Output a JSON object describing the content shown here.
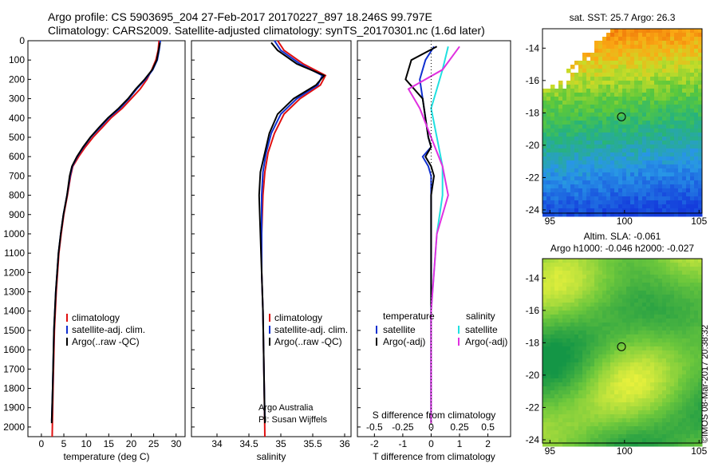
{
  "header": {
    "line1": "Argo profile: CS 5903695_204 27-Feb-2017 20170227_897 18.246S 99.797E",
    "line2": "Climatology: CARS2009. Satellite-adjusted climatology: synTS_20170301.nc (1.6d later)"
  },
  "credit": "©IMOS 08-Mar-2017 20:38:32",
  "colors": {
    "climatology": "#e01010",
    "satellite": "#1030d0",
    "argo": "#000000",
    "satellite_salinity": "#20e0e0",
    "argo_salinity": "#e030e0"
  },
  "chart_data": [
    {
      "type": "line",
      "xlabel": "temperature (deg C)",
      "xlim": [
        -3,
        32
      ],
      "ylim": [
        2050,
        0
      ],
      "y_ticks": [
        0,
        100,
        200,
        300,
        400,
        500,
        600,
        700,
        800,
        900,
        1000,
        1100,
        1200,
        1300,
        1400,
        1500,
        1600,
        1700,
        1800,
        1900,
        2000
      ],
      "x_ticks": [
        0,
        5,
        10,
        15,
        20,
        25,
        30
      ],
      "legend": [
        "climatology",
        "satellite-adj. clim.",
        "Argo(..raw -QC)"
      ],
      "series": [
        {
          "name": "climatology",
          "color": "#e01010",
          "x": [
            26.2,
            26.0,
            25.5,
            24.6,
            23.5,
            22.0,
            20.0,
            18.0,
            15.5,
            13.5,
            11.5,
            9.8,
            8.3,
            7.0,
            6.5,
            5.8,
            5.0,
            4.4,
            3.9,
            3.3,
            2.9,
            2.6,
            2.4
          ],
          "y": [
            0,
            50,
            100,
            150,
            200,
            250,
            300,
            350,
            400,
            450,
            500,
            550,
            600,
            650,
            700,
            800,
            900,
            1000,
            1100,
            1300,
            1500,
            1800,
            2050
          ]
        },
        {
          "name": "satellite-adj. clim.",
          "color": "#1030d0",
          "x": [
            26.5,
            26.2,
            25.8,
            24.8,
            23.2,
            21.2,
            19.5,
            17.5,
            15.0,
            13.0,
            11.0,
            9.4,
            8.0,
            6.9,
            6.4,
            5.7,
            4.9,
            4.3,
            3.8,
            3.2,
            2.8,
            2.5,
            2.3
          ],
          "y": [
            0,
            50,
            100,
            150,
            200,
            250,
            300,
            350,
            400,
            450,
            500,
            550,
            600,
            650,
            700,
            800,
            900,
            1000,
            1100,
            1300,
            1500,
            1800,
            1970
          ]
        },
        {
          "name": "Argo(..raw -QC)",
          "color": "#000000",
          "x": [
            26.4,
            26.1,
            25.7,
            24.7,
            23.0,
            21.0,
            19.3,
            17.2,
            14.8,
            12.8,
            10.9,
            9.3,
            7.9,
            6.8,
            6.3,
            5.7,
            4.9,
            4.3,
            3.8,
            3.2,
            2.8,
            2.5,
            2.3
          ],
          "y": [
            10,
            50,
            100,
            150,
            200,
            250,
            300,
            350,
            400,
            450,
            500,
            550,
            600,
            650,
            700,
            800,
            900,
            1000,
            1100,
            1300,
            1500,
            1800,
            1980
          ]
        }
      ]
    },
    {
      "type": "line",
      "xlabel": "salinity",
      "xlim": [
        33.6,
        36.1
      ],
      "ylim": [
        2050,
        0
      ],
      "x_ticks": [
        34,
        34.5,
        35,
        35.5,
        36
      ],
      "legend": [
        "climatology",
        "satellite-adj. clim.",
        "Argo(..raw -QC)"
      ],
      "annotation": [
        "Argo Australia",
        "PI: Susan Wijffels"
      ],
      "series": [
        {
          "name": "climatology",
          "color": "#e01010",
          "x": [
            34.95,
            35.05,
            35.35,
            35.7,
            35.62,
            35.3,
            35.05,
            34.9,
            34.8,
            34.75,
            34.72,
            34.7,
            34.7,
            34.72,
            34.73,
            34.74,
            34.75
          ],
          "y": [
            0,
            50,
            120,
            180,
            230,
            300,
            380,
            480,
            580,
            680,
            800,
            1000,
            1200,
            1400,
            1600,
            1800,
            2050
          ]
        },
        {
          "name": "satellite-adj. clim.",
          "color": "#1030d0",
          "x": [
            34.9,
            35.0,
            35.3,
            35.65,
            35.58,
            35.25,
            35.0,
            34.85,
            34.77,
            34.72,
            34.7,
            34.7,
            34.7,
            34.72,
            34.73,
            34.74,
            34.75
          ],
          "y": [
            0,
            50,
            120,
            180,
            230,
            300,
            380,
            480,
            580,
            680,
            800,
            1000,
            1200,
            1400,
            1600,
            1800,
            1970
          ]
        },
        {
          "name": "Argo(..raw -QC)",
          "color": "#000000",
          "x": [
            34.85,
            34.95,
            35.25,
            35.68,
            35.55,
            35.2,
            34.95,
            34.82,
            34.75,
            34.68,
            34.66,
            34.68,
            34.7,
            34.72,
            34.73,
            34.74,
            34.75
          ],
          "y": [
            10,
            50,
            120,
            180,
            230,
            300,
            380,
            480,
            580,
            680,
            800,
            1000,
            1200,
            1400,
            1600,
            1800,
            1980
          ]
        }
      ]
    },
    {
      "type": "line",
      "xlabel": "T difference from climatology",
      "xlabel2": "S difference from climatology",
      "xlim": [
        -2.6,
        2.8
      ],
      "ylim": [
        2050,
        0
      ],
      "x_ticks": [
        -2,
        -1,
        0,
        1,
        2
      ],
      "x2_ticks": [
        -0.5,
        -0.25,
        0,
        0.25,
        0.5
      ],
      "legend_headers": [
        "temperature",
        "salinity"
      ],
      "legend": [
        "satellite",
        "Argo(-adj)",
        "satellite",
        "Argo(-adj)"
      ],
      "series": [
        {
          "name": "temperature satellite",
          "color": "#1030d0",
          "x": [
            0.1,
            -0.2,
            -0.4,
            -0.3,
            -0.2,
            -0.1,
            0.0,
            -0.3,
            -0.1,
            0.0,
            0.0,
            0.0,
            0.0,
            0.0,
            0.0
          ],
          "y": [
            30,
            100,
            200,
            300,
            400,
            500,
            550,
            600,
            650,
            700,
            800,
            1000,
            1400,
            1800,
            1970
          ]
        },
        {
          "name": "temperature Argo(-adj)",
          "color": "#000000",
          "x": [
            0.2,
            -0.7,
            -0.9,
            -0.3,
            -0.2,
            -0.1,
            0.0,
            -0.2,
            0.0,
            0.1,
            0.0,
            0.0,
            0.0,
            0.0,
            0.0
          ],
          "y": [
            30,
            100,
            200,
            300,
            400,
            500,
            550,
            600,
            650,
            700,
            800,
            1000,
            1400,
            1800,
            1980
          ]
        },
        {
          "name": "salinity satellite",
          "color": "#20e0e0",
          "x": [
            0.15,
            0.1,
            0.05,
            0.0,
            0.05,
            0.1,
            0.1,
            0.05,
            0.0,
            0.0,
            0.0
          ],
          "y": [
            30,
            150,
            250,
            350,
            500,
            650,
            800,
            1000,
            1400,
            1800,
            1970
          ]
        },
        {
          "name": "salinity Argo(-adj)",
          "color": "#e030e0",
          "x": [
            0.25,
            0.1,
            -0.2,
            -0.1,
            0.0,
            0.1,
            0.15,
            0.05,
            0.0,
            0.0,
            0.0
          ],
          "y": [
            30,
            150,
            250,
            350,
            500,
            650,
            800,
            1000,
            1400,
            1800,
            1980
          ]
        }
      ]
    },
    {
      "type": "heatmap",
      "title": "sat. SST: 25.7  Argo: 26.3",
      "xlim": [
        94.5,
        105.2
      ],
      "ylim": [
        -24.2,
        -12.8
      ],
      "x_ticks": [
        95,
        100,
        105
      ],
      "y_ticks": [
        -14,
        -16,
        -18,
        -20,
        -22,
        -24
      ],
      "marker": {
        "lon": 99.797,
        "lat": -18.246
      }
    },
    {
      "type": "heatmap",
      "title": "Altim. SLA: -0.061",
      "subtitle": "Argo h1000: -0.046 h2000: -0.027",
      "xlim": [
        94.5,
        105.2
      ],
      "ylim": [
        -24.2,
        -12.8
      ],
      "x_ticks": [
        95,
        100,
        105
      ],
      "y_ticks": [
        -14,
        -16,
        -18,
        -20,
        -22,
        -24
      ],
      "marker": {
        "lon": 99.797,
        "lat": -18.246
      }
    }
  ]
}
